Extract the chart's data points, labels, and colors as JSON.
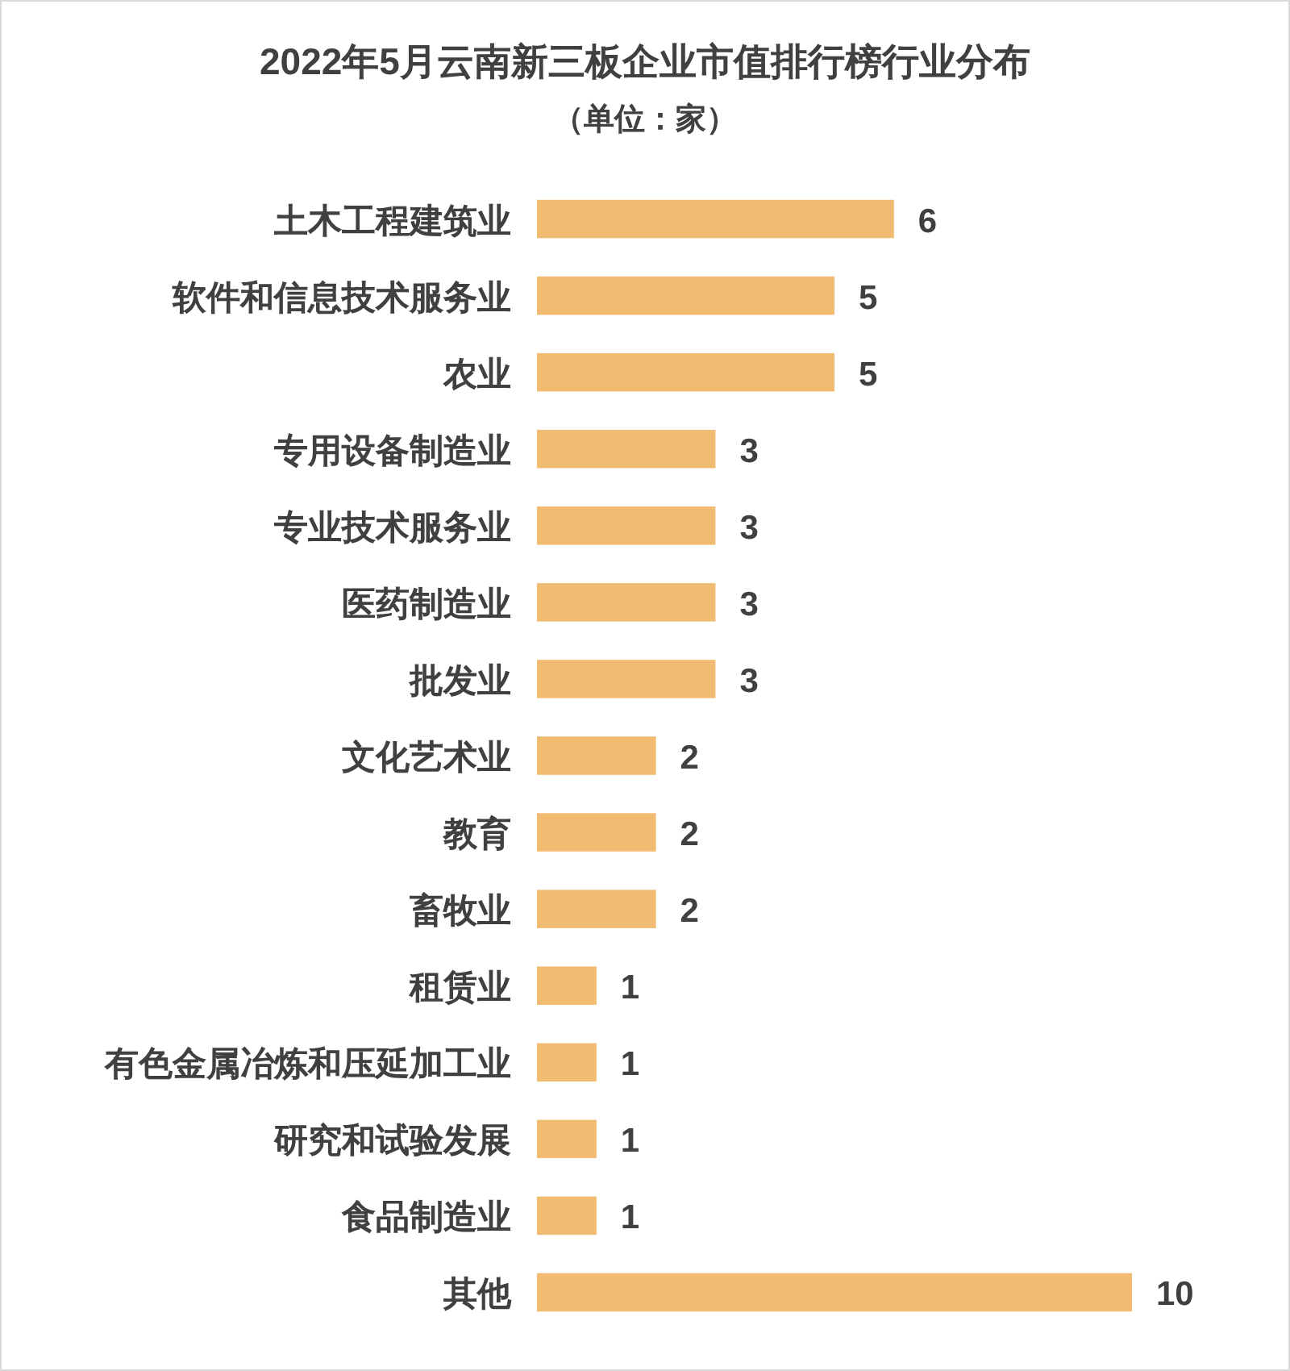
{
  "chart_data": {
    "type": "bar",
    "orientation": "horizontal",
    "title": "2022年5月云南新三板企业市值排行榜行业分布",
    "subtitle": "（单位：家）",
    "categories": [
      "土木工程建筑业",
      "软件和信息技术服务业",
      "农业",
      "专用设备制造业",
      "专业技术服务业",
      "医药制造业",
      "批发业",
      "文化艺术业",
      "教育",
      "畜牧业",
      "租赁业",
      "有色金属冶炼和压延加工业",
      "研究和试验发展",
      "食品制造业",
      "其他"
    ],
    "values": [
      6,
      5,
      5,
      3,
      3,
      3,
      3,
      2,
      2,
      2,
      1,
      1,
      1,
      1,
      10
    ],
    "color": "#f2bb72",
    "data_labels": true
  }
}
